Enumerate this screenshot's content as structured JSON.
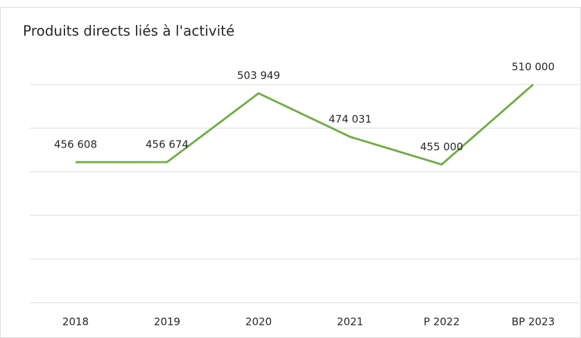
{
  "chart_data": {
    "type": "line",
    "title": "Produits directs liés à l'activité",
    "categories": [
      "2018",
      "2019",
      "2020",
      "2021",
      "P 2022",
      "BP 2023"
    ],
    "series": [
      {
        "name": null,
        "color": "#70ad47",
        "values": [
          456608,
          456674,
          503949,
          474031,
          455000,
          510000
        ],
        "value_labels": [
          "456 608",
          "456 674",
          "503 949",
          "474 031",
          "455 000",
          "510 000"
        ]
      }
    ],
    "ylim": [
      360000,
      510000
    ],
    "yticks": [
      360000,
      390000,
      420000,
      450000,
      480000,
      510000
    ],
    "grid": true
  }
}
